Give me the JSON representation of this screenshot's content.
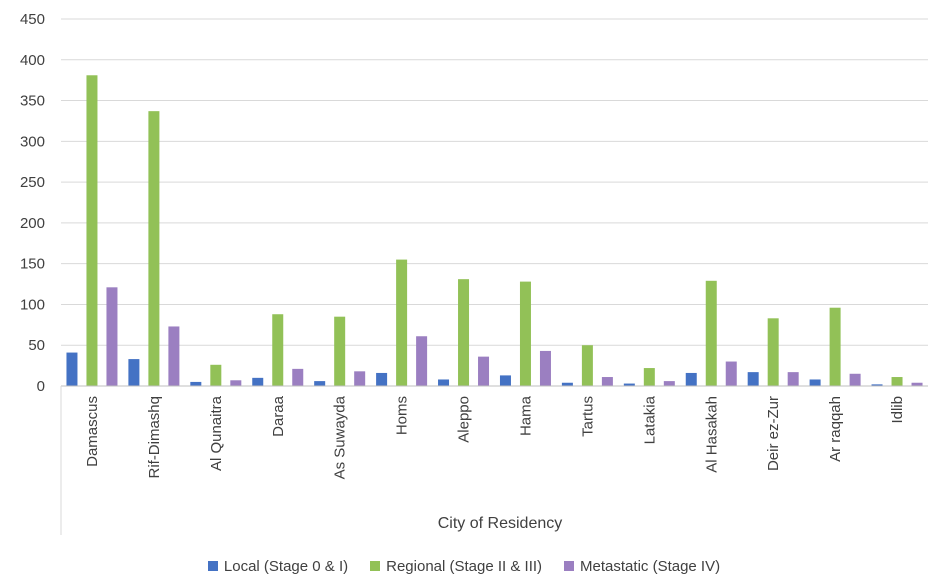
{
  "chart_data": {
    "type": "bar",
    "title": "",
    "xlabel": "City of Residency",
    "ylabel": "",
    "ylim": [
      0,
      450
    ],
    "yticks": [
      "0",
      "50",
      "100",
      "150",
      "200",
      "250",
      "300",
      "350",
      "400",
      "450"
    ],
    "grid": true,
    "legend_position": "bottom",
    "categories": [
      "Damascus",
      "Rif-Dimashq",
      "Al Qunaitra",
      "Daraa",
      "As Suwayda",
      "Homs",
      "Aleppo",
      "Hama",
      "Tartus",
      "Latakia",
      "Al Hasakah",
      "Deir ez-Zur",
      "Ar raqqah",
      "Idlib"
    ],
    "series": [
      {
        "name": "Local (Stage 0 & I)",
        "color": "#4472c4",
        "values": [
          41,
          33,
          5,
          10,
          6,
          16,
          8,
          13,
          4,
          3,
          16,
          17,
          8,
          2
        ]
      },
      {
        "name": "Regional (Stage II & III)",
        "color": "#92c157",
        "values": [
          381,
          337,
          26,
          88,
          85,
          155,
          131,
          128,
          50,
          22,
          129,
          83,
          96,
          11
        ]
      },
      {
        "name": "Metastatic (Stage IV)",
        "color": "#9b7fc1",
        "values": [
          121,
          73,
          7,
          21,
          18,
          61,
          36,
          43,
          11,
          6,
          30,
          17,
          15,
          4
        ]
      }
    ]
  }
}
